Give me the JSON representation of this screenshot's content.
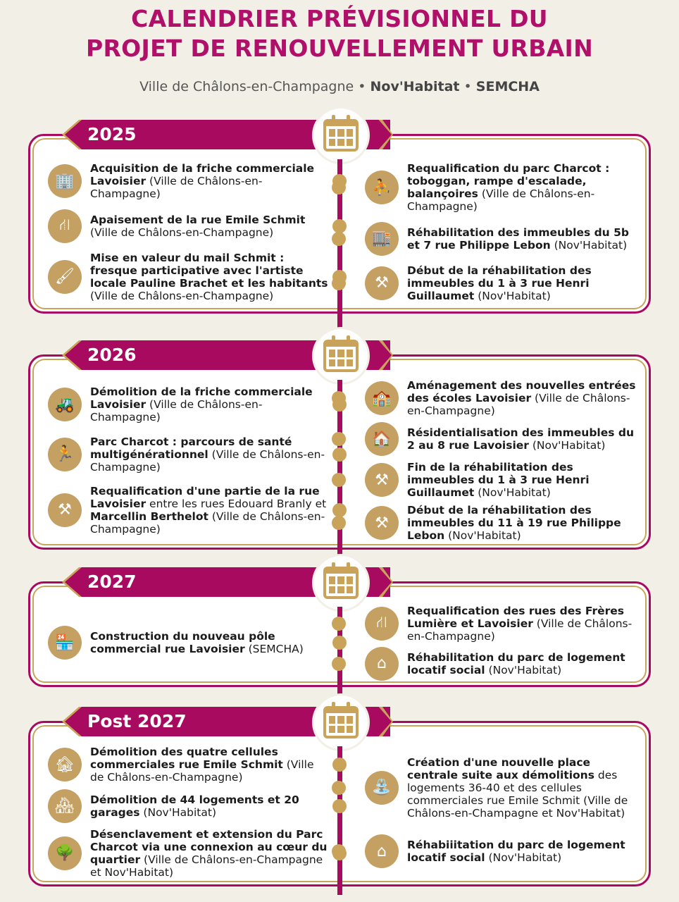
{
  "title": {
    "line1": "CALENDRIER PRÉVISIONNEL DU",
    "line2": "PROJET DE RENOUVELLEMENT URBAIN"
  },
  "subtitle": {
    "city": "Ville de Châlons-en-Champagne",
    "sep1": " • ",
    "org1": "Nov'Habitat",
    "sep2": " • ",
    "org2": "SEMCHA"
  },
  "colors": {
    "accent": "#a80a60",
    "gold": "#c9a35a",
    "background": "#f2efe7"
  },
  "sections": [
    {
      "year": "2025",
      "icon": "calendar-icon",
      "left": [
        {
          "icon": "building-icon",
          "seg": [
            {
              "t": "Acquisition de la friche commerciale Lavoisier",
              "b": true
            },
            {
              "t": " (Ville de Châlons-en-Champagne)",
              "b": false
            }
          ]
        },
        {
          "icon": "road-icon",
          "seg": [
            {
              "t": "Apaisement de la rue Emile Schmit",
              "b": true
            },
            {
              "t": " (Ville de Châlons-en-Champagne)",
              "b": false
            }
          ]
        },
        {
          "icon": "paintbrush-icon",
          "seg": [
            {
              "t": "Mise en valeur du mail Schmit : fresque participative avec l'artiste locale Pauline Brachet et les habitants",
              "b": true
            },
            {
              "t": " (Ville de Châlons-en-Champagne)",
              "b": false
            }
          ]
        }
      ],
      "right": [
        {
          "icon": "playground-icon",
          "seg": [
            {
              "t": "Requalification du parc Charcot : toboggan, rampe d'escalade, balançoires",
              "b": true
            },
            {
              "t": " (Ville de Châlons-en-Champagne)",
              "b": false
            }
          ]
        },
        {
          "icon": "apartment-icon",
          "seg": [
            {
              "t": "Réhabilitation des immeubles du 5b et 7 rue Philippe Lebon",
              "b": true
            },
            {
              "t": " (Nov'Habitat)",
              "b": false
            }
          ]
        },
        {
          "icon": "worker-icon",
          "seg": [
            {
              "t": "Début de la réhabilitation des immeubles du 1 à 3 rue Henri Guillaumet",
              "b": true
            },
            {
              "t": " (Nov'Habitat)",
              "b": false
            }
          ]
        }
      ]
    },
    {
      "year": "2026",
      "icon": "calendar-icon",
      "left": [
        {
          "icon": "excavator-icon",
          "seg": [
            {
              "t": "Démolition de la friche commerciale Lavoisier",
              "b": true
            },
            {
              "t": " (Ville de Châlons-en-Champagne)",
              "b": false
            }
          ]
        },
        {
          "icon": "exercise-icon",
          "seg": [
            {
              "t": "Parc Charcot : parcours de santé multigénérationnel",
              "b": true
            },
            {
              "t": " (Ville de Châlons-en-Champagne)",
              "b": false
            }
          ]
        },
        {
          "icon": "worker-icon",
          "seg": [
            {
              "t": "Requalification d'une partie de la rue Lavoisier",
              "b": true
            },
            {
              "t": " entre les rues Edouard Branly et ",
              "b": false
            },
            {
              "t": "Marcellin Berthelot",
              "b": true
            },
            {
              "t": " (Ville de Châlons-en-Champagne)",
              "b": false
            }
          ]
        }
      ],
      "right": [
        {
          "icon": "school-icon",
          "seg": [
            {
              "t": "Aménagement des nouvelles entrées des écoles Lavoisier",
              "b": true
            },
            {
              "t": " (Ville de Châlons-en-Champagne)",
              "b": false
            }
          ]
        },
        {
          "icon": "residence-icon",
          "seg": [
            {
              "t": "Résidentialisation des immeubles du 2 au 8 rue Lavoisier",
              "b": true
            },
            {
              "t": " (Nov'Habitat)",
              "b": false
            }
          ]
        },
        {
          "icon": "worker-icon",
          "seg": [
            {
              "t": "Fin de la réhabilitation des immeubles du 1 à 3 rue Henri Guillaumet",
              "b": true
            },
            {
              "t": " (Nov'Habitat)",
              "b": false
            }
          ]
        },
        {
          "icon": "worker-icon",
          "seg": [
            {
              "t": "Début de la réhabilitation des immeubles du 11 à 19 rue Philippe Lebon",
              "b": true
            },
            {
              "t": " (Nov'Habitat)",
              "b": false
            }
          ]
        }
      ]
    },
    {
      "year": "2027",
      "icon": "calendar-icon",
      "left": [
        {
          "icon": "shop-icon",
          "seg": [
            {
              "t": "Construction du nouveau pôle commercial rue Lavoisier",
              "b": true
            },
            {
              "t": " (SEMCHA)",
              "b": false
            }
          ]
        }
      ],
      "right": [
        {
          "icon": "road-icon",
          "seg": [
            {
              "t": "Requalification des rues des Frères Lumière et Lavoisier",
              "b": true
            },
            {
              "t": " (Ville de Châlons-en-Champagne)",
              "b": false
            }
          ]
        },
        {
          "icon": "house-icon",
          "seg": [
            {
              "t": "Réhabilitation du parc de logement locatif social",
              "b": true
            },
            {
              "t": " (Nov'Habitat)",
              "b": false
            }
          ]
        }
      ]
    },
    {
      "year": "Post 2027",
      "icon": "calendar-arrow-icon",
      "left": [
        {
          "icon": "demolition-icon",
          "seg": [
            {
              "t": "Démolition des quatre cellules commerciales rue Emile Schmit",
              "b": true
            },
            {
              "t": " (Ville de Châlons-en-Champagne)",
              "b": false
            }
          ]
        },
        {
          "icon": "house-demolition-icon",
          "seg": [
            {
              "t": "Démolition de 44 logements et 20 garages",
              "b": true
            },
            {
              "t": " (Nov'Habitat)",
              "b": false
            }
          ]
        },
        {
          "icon": "park-path-icon",
          "seg": [
            {
              "t": "Désenclavement et extension du Parc Charcot via une connexion au cœur du quartier",
              "b": true
            },
            {
              "t": " (Ville de Châlons-en-Champagne et Nov'Habitat)",
              "b": false
            }
          ]
        }
      ],
      "right": [
        {
          "icon": "plaza-icon",
          "seg": [
            {
              "t": "Création d'une nouvelle place centrale suite aux démolitions",
              "b": true
            },
            {
              "t": " des logements 36-40 et des cellules commerciales rue Emile Schmit (Ville de Châlons-en-Champagne et Nov'Habitat)",
              "b": false
            }
          ]
        },
        {
          "icon": "house-icon",
          "seg": [
            {
              "t": "Réhabiiitation du parc de logement locatif social",
              "b": true
            },
            {
              "t": " (Nov'Habitat)",
              "b": false
            }
          ]
        }
      ]
    }
  ]
}
